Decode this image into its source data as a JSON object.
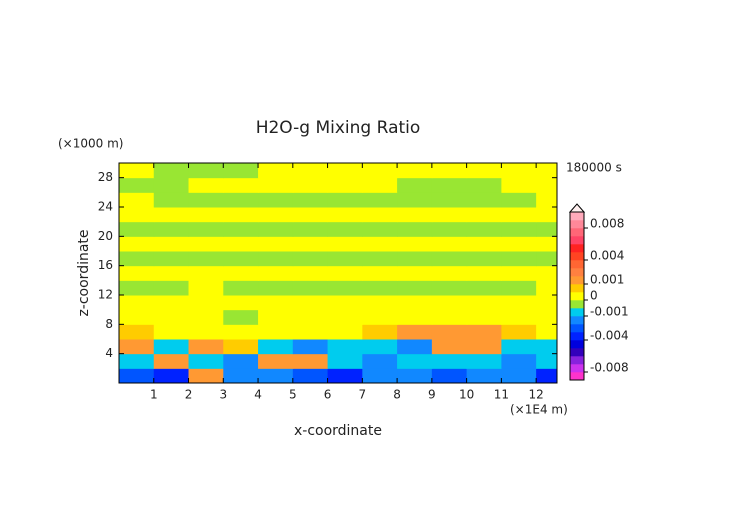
{
  "chart_data": {
    "type": "contour",
    "title": "H2O-g Mixing Ratio",
    "y_unit": "(×1000 m)",
    "time_label": "180000 s",
    "ylabel": "z-coordinate",
    "xlabel": "x-coordinate",
    "x_unit": "(×1E4 m)",
    "xlim": [
      0,
      12.6
    ],
    "ylim": [
      0,
      30
    ],
    "xticks": [
      1,
      2,
      3,
      4,
      5,
      6,
      7,
      8,
      9,
      10,
      11,
      12
    ],
    "yticks": [
      4,
      8,
      12,
      16,
      20,
      24,
      28
    ],
    "x_edges": [
      0,
      1,
      2,
      3,
      4,
      5,
      6,
      7,
      8,
      9,
      10,
      11,
      12,
      12.6
    ],
    "z_edges": [
      0,
      2,
      4,
      6,
      8,
      10,
      12,
      14,
      16,
      18,
      20,
      22,
      24,
      26,
      28,
      30
    ],
    "values": [
      [
        -0.003,
        -0.0035,
        0.0012,
        -0.002,
        -0.0015,
        -0.003,
        -0.004,
        -0.002,
        -0.0015,
        -0.003,
        -0.002,
        -0.0015,
        -0.0035
      ],
      [
        -0.0008,
        0.0015,
        -0.0008,
        -0.0012,
        0.0015,
        0.0015,
        -0.0008,
        -0.0015,
        -0.0008,
        -0.0008,
        -0.0008,
        -0.0015,
        -0.0008
      ],
      [
        0.0015,
        -0.0008,
        0.0012,
        0.0008,
        -0.0008,
        -0.0015,
        -0.0008,
        -0.0008,
        -0.0012,
        0.0015,
        0.0015,
        -0.0008,
        -0.0008
      ],
      [
        0.0007,
        0.0002,
        0.0002,
        0.0002,
        0.0002,
        0.0002,
        0.0002,
        0.0008,
        0.0012,
        0.0015,
        0.0012,
        0.0008,
        0.0002
      ],
      [
        0.0002,
        0.0002,
        0.0002,
        -0.0003,
        0.0002,
        0.0002,
        0.0002,
        0.0002,
        0.0002,
        0.0002,
        0.0002,
        0.0002,
        0.0002
      ],
      [
        0.0002,
        0.0002,
        0.0002,
        0.0002,
        0.0002,
        0.0002,
        0.0002,
        0.0002,
        0.0002,
        0.0002,
        0.0002,
        0.0002,
        0.0002
      ],
      [
        -0.0003,
        -0.0003,
        0.0002,
        -0.0003,
        -0.0003,
        -0.0003,
        -0.0003,
        -0.0003,
        -0.0003,
        -0.0003,
        -0.0003,
        -0.0003,
        0.0002
      ],
      [
        0.0002,
        0.0002,
        0.0002,
        0.0002,
        0.0002,
        0.0002,
        0.0002,
        0.0002,
        0.0002,
        0.0002,
        0.0002,
        0.0002,
        0.0002
      ],
      [
        -0.0003,
        -0.0003,
        -0.0003,
        -0.0003,
        -0.0003,
        -0.0003,
        -0.0003,
        -0.0003,
        -0.0003,
        -0.0003,
        -0.0003,
        -0.0003,
        -0.0003
      ],
      [
        0.0002,
        0.0002,
        0.0002,
        0.0002,
        0.0002,
        0.0002,
        0.0002,
        0.0002,
        0.0002,
        0.0002,
        0.0002,
        0.0002,
        0.0002
      ],
      [
        -0.0003,
        -0.0003,
        -0.0003,
        -0.0003,
        -0.0003,
        -0.0003,
        -0.0003,
        -0.0003,
        -0.0003,
        -0.0003,
        -0.0003,
        -0.0003,
        -0.0003
      ],
      [
        0.0002,
        0.0002,
        0.0002,
        0.0002,
        0.0002,
        0.0002,
        0.0002,
        0.0002,
        0.0002,
        0.0002,
        0.0002,
        0.0002,
        0.0002
      ],
      [
        0.0002,
        -0.0003,
        -0.0003,
        -0.0003,
        -0.0003,
        -0.0003,
        -0.0003,
        -0.0003,
        -0.0003,
        -0.0003,
        -0.0003,
        -0.0003,
        0.0002
      ],
      [
        -0.0003,
        -0.0003,
        0.0002,
        0.0002,
        0.0002,
        0.0002,
        0.0002,
        0.0002,
        -0.0003,
        -0.0003,
        -0.0003,
        0.0002,
        0.0002
      ],
      [
        0.0002,
        -0.0003,
        -0.0003,
        -0.0003,
        0.0002,
        0.0002,
        0.0002,
        0.0002,
        0.0002,
        0.0002,
        0.0002,
        0.0002,
        0.0002
      ]
    ],
    "levels": [
      -0.009,
      -0.008,
      -0.007,
      -0.006,
      -0.005,
      -0.004,
      -0.003,
      -0.002,
      -0.001,
      -0.0005,
      0,
      0.0005,
      0.001,
      0.002,
      0.003,
      0.004,
      0.005,
      0.006,
      0.007,
      0.008,
      0.009,
      0.01
    ],
    "level_colors": [
      "#ff33cc",
      "#cc33ee",
      "#8822dd",
      "#3300bb",
      "#0000dd",
      "#0022ff",
      "#0055ff",
      "#1188ff",
      "#00ccee",
      "#99e633",
      "#ffff00",
      "#ffcc00",
      "#ff9933",
      "#ff8040",
      "#ff6633",
      "#ff4422",
      "#ff2222",
      "#ff4466",
      "#ff6677",
      "#ff8899",
      "#ffaabb"
    ],
    "colorbar_ticks": [
      0.008,
      0.004,
      0.001,
      0,
      -0.001,
      -0.004,
      -0.008
    ]
  }
}
